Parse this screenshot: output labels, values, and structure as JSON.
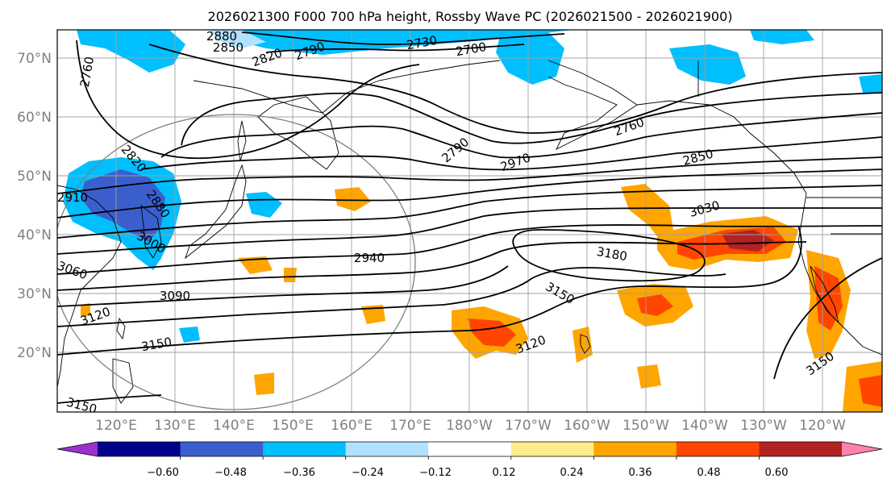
{
  "title": "2026021300 F000 700 hPa height, Rossby Wave PC (2026021500 - 2026021900)",
  "map": {
    "lat_labels": [
      "70°N",
      "60°N",
      "50°N",
      "40°N",
      "30°N",
      "20°N"
    ],
    "lon_labels": [
      "120°E",
      "130°E",
      "140°E",
      "150°E",
      "160°E",
      "170°E",
      "180°W",
      "170°W",
      "160°W",
      "150°W",
      "140°W",
      "130°W",
      "120°W"
    ],
    "extent": {
      "lon_min": 110,
      "lon_max": 250,
      "lat_min": 10,
      "lat_max": 75
    }
  },
  "colorbar": {
    "colors": [
      "#9932cc",
      "#00008b",
      "#3a5fcd",
      "#00bfff",
      "#b0e2ff",
      "#ffffff",
      "#ffec8b",
      "#ffa500",
      "#ff4500",
      "#b22222",
      "#ff82ab"
    ],
    "tick_labels": [
      "−0.60",
      "−0.48",
      "−0.36",
      "−0.24",
      "−0.12",
      "0.12",
      "0.24",
      "0.36",
      "0.48",
      "0.60"
    ]
  },
  "contour_labels": [
    "2880",
    "2850",
    "2820",
    "2790",
    "2730",
    "2700",
    "2760",
    "2820",
    "2910",
    "2880",
    "3000",
    "3060",
    "3090",
    "3120",
    "3150",
    "3150",
    "2790",
    "2970",
    "2760",
    "2850",
    "3030",
    "2940",
    "3180",
    "3150",
    "3120",
    "3150"
  ]
}
